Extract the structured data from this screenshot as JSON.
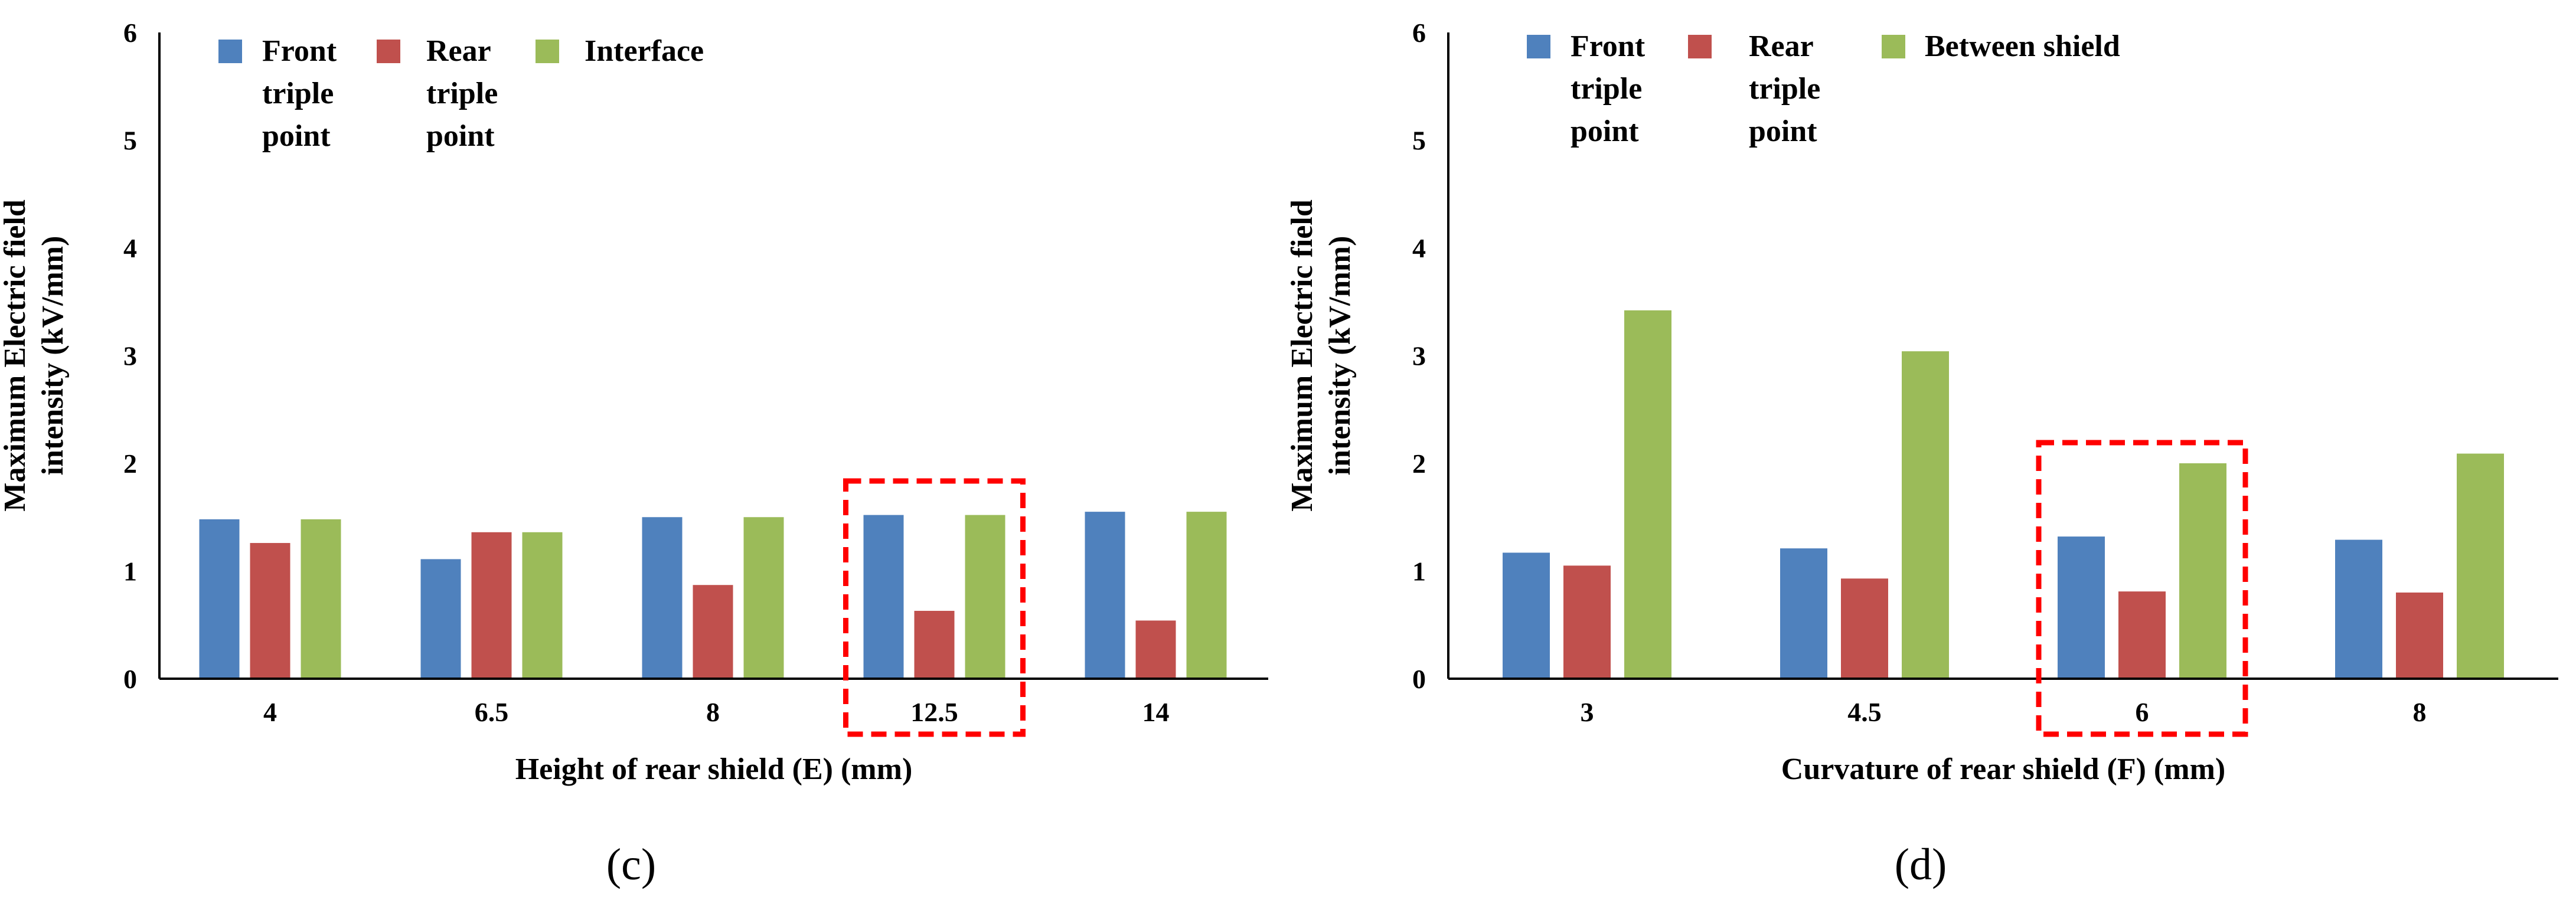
{
  "chart_data": [
    {
      "type": "bar",
      "panel_label": "(c)",
      "categories": [
        "4",
        "6.5",
        "8",
        "12.5",
        "14"
      ],
      "series": [
        {
          "name": [
            "Front",
            "triple",
            "point"
          ],
          "color": "#4F81BD",
          "values": [
            1.48,
            1.11,
            1.5,
            1.52,
            1.55
          ]
        },
        {
          "name": [
            "Rear",
            "triple",
            "point"
          ],
          "color": "#C0504D",
          "values": [
            1.26,
            1.36,
            0.87,
            0.63,
            0.54
          ]
        },
        {
          "name": [
            "Interface"
          ],
          "color": "#9BBB59",
          "values": [
            1.48,
            1.36,
            1.5,
            1.52,
            1.55
          ]
        }
      ],
      "yticks": [
        "0",
        "1",
        "2",
        "3",
        "4",
        "5",
        "6"
      ],
      "ylim": [
        0,
        6
      ],
      "xlabel": "Height of rear shield (E) (mm)",
      "ylabel": [
        "Maximum Electric field",
        "intensity (kV/mm)"
      ],
      "highlight_category": "12.5",
      "highlight_color": "#FF0000"
    },
    {
      "type": "bar",
      "panel_label": "(d)",
      "categories": [
        "3",
        "4.5",
        "6",
        "8"
      ],
      "series": [
        {
          "name": [
            "Front",
            "triple",
            "point"
          ],
          "color": "#4F81BD",
          "values": [
            1.17,
            1.21,
            1.32,
            1.29
          ]
        },
        {
          "name": [
            "Rear",
            "triple",
            "point"
          ],
          "color": "#C0504D",
          "values": [
            1.05,
            0.93,
            0.81,
            0.8
          ]
        },
        {
          "name": [
            "Between shield"
          ],
          "color": "#9BBB59",
          "values": [
            3.42,
            3.04,
            2.0,
            2.09
          ]
        }
      ],
      "yticks": [
        "0",
        "1",
        "2",
        "3",
        "4",
        "5",
        "6"
      ],
      "ylim": [
        0,
        6
      ],
      "xlabel": "Curvature of rear shield (F) (mm)",
      "ylabel": [
        "Maximum Electric field",
        "intensity (kV/mm)"
      ],
      "highlight_category": "6",
      "highlight_color": "#FF0000"
    }
  ]
}
